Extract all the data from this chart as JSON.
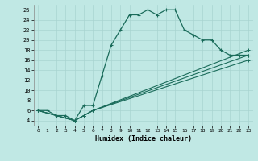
{
  "title": "",
  "xlabel": "Humidex (Indice chaleur)",
  "bg_color": "#c0e8e4",
  "line_color": "#1a6b5a",
  "grid_color": "#a8d4d0",
  "xlim": [
    -0.5,
    23.5
  ],
  "ylim": [
    3,
    27
  ],
  "xticks": [
    0,
    1,
    2,
    3,
    4,
    5,
    6,
    7,
    8,
    9,
    10,
    11,
    12,
    13,
    14,
    15,
    16,
    17,
    18,
    19,
    20,
    21,
    22,
    23
  ],
  "yticks": [
    4,
    6,
    8,
    10,
    12,
    14,
    16,
    18,
    20,
    22,
    24,
    26
  ],
  "series1_x": [
    0,
    1,
    2,
    3,
    4,
    5,
    6,
    7,
    8,
    9,
    10,
    11,
    12,
    13,
    14,
    15,
    16,
    17,
    18,
    19,
    20,
    21,
    22,
    23
  ],
  "series1_y": [
    6,
    6,
    5,
    5,
    4,
    7,
    7,
    13,
    19,
    22,
    25,
    25,
    26,
    25,
    26,
    26,
    22,
    21,
    20,
    20,
    18,
    17,
    17,
    17
  ],
  "series2_x": [
    0,
    4,
    5,
    6,
    23
  ],
  "series2_y": [
    6,
    4,
    5,
    6,
    18
  ],
  "series3_x": [
    0,
    4,
    5,
    6,
    23
  ],
  "series3_y": [
    6,
    4,
    5,
    6,
    17
  ],
  "series4_x": [
    0,
    4,
    5,
    6,
    23
  ],
  "series4_y": [
    6,
    4,
    5,
    6,
    16
  ]
}
